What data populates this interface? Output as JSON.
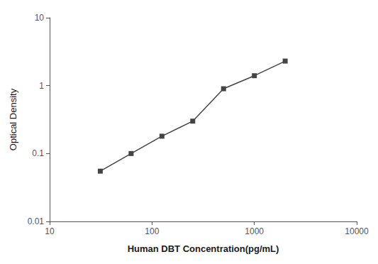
{
  "chart_data": {
    "type": "line",
    "x": [
      31.25,
      62.5,
      125,
      250,
      500,
      1000,
      2000
    ],
    "values": [
      0.055,
      0.1,
      0.18,
      0.3,
      0.9,
      1.4,
      2.3
    ],
    "xlabel": "Human DBT Concentration(pg/mL)",
    "ylabel": "Optical Density",
    "log": true,
    "xlim": [
      10,
      10000
    ],
    "ylim": [
      0.01,
      10
    ],
    "xticks": [
      10,
      100,
      1000,
      10000
    ],
    "yticks": [
      0.01,
      0.1,
      1,
      10
    ],
    "color": "#444444",
    "marker": "square",
    "line_style": "solid",
    "grid": false
  }
}
